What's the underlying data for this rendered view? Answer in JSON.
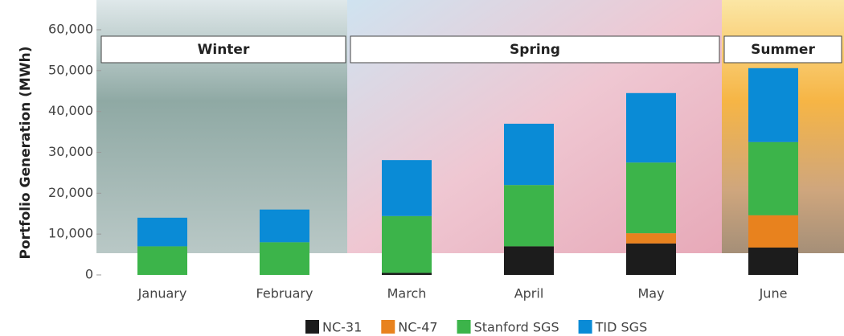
{
  "chart_data": {
    "type": "stacked_bar",
    "y_label": "Portfolio Generation (MWh)",
    "categories": [
      "January",
      "February",
      "March",
      "April",
      "May",
      "June"
    ],
    "series": [
      {
        "name": "NC-31",
        "color": "#1c1c1c",
        "values": [
          0,
          0,
          500,
          7000,
          7700,
          6700
        ]
      },
      {
        "name": "NC-47",
        "color": "#e8821e",
        "values": [
          0,
          0,
          0,
          0,
          2500,
          7900
        ]
      },
      {
        "name": "Stanford SGS",
        "color": "#3cb44a",
        "values": [
          7000,
          8000,
          13900,
          15000,
          17300,
          17900
        ]
      },
      {
        "name": "TID SGS",
        "color": "#0a8bd6",
        "values": [
          7000,
          8000,
          13700,
          15000,
          17000,
          18100
        ]
      }
    ],
    "ylim": [
      0,
      60000
    ],
    "yticks": [
      {
        "value": 0,
        "label": "0"
      },
      {
        "value": 10000,
        "label": "10,000"
      },
      {
        "value": 20000,
        "label": "20,000"
      },
      {
        "value": 30000,
        "label": "30,000"
      },
      {
        "value": 40000,
        "label": "40,000"
      },
      {
        "value": 50000,
        "label": "50,000"
      },
      {
        "value": 60000,
        "label": "60,000"
      }
    ],
    "seasons": [
      "Winter",
      "Spring",
      "Summer"
    ]
  }
}
